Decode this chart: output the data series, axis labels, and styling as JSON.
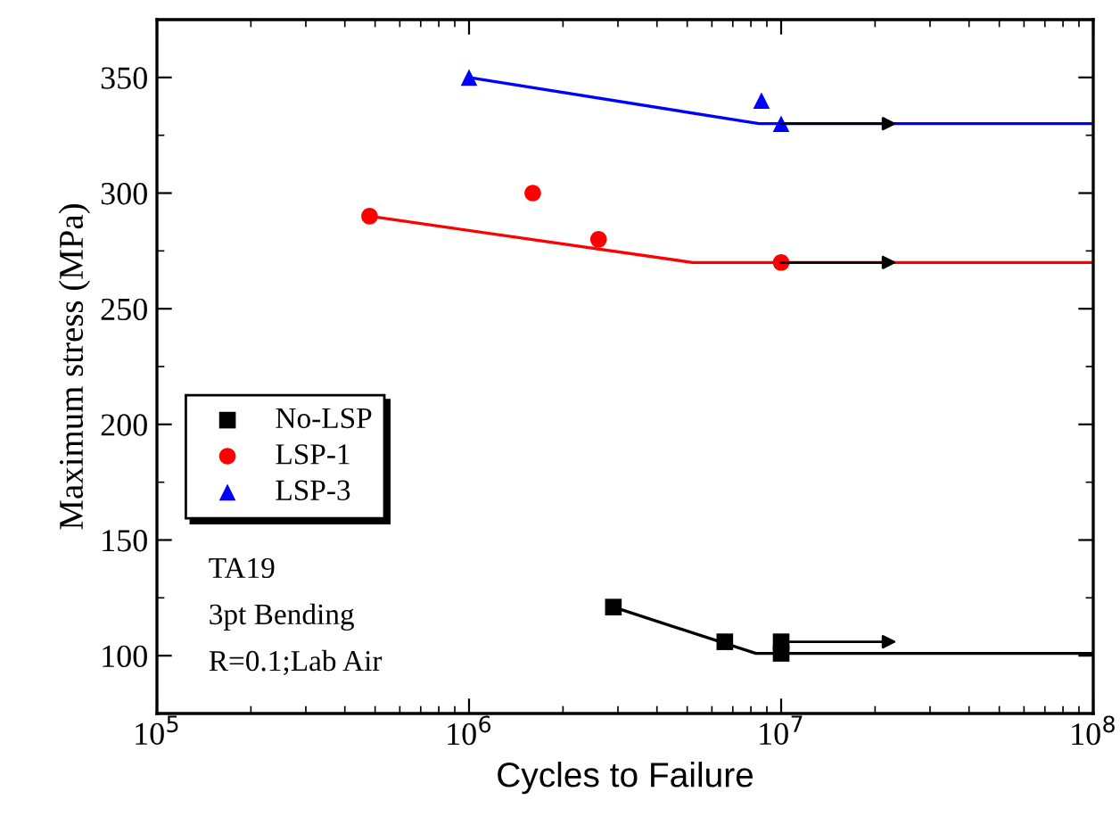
{
  "chart_data": {
    "type": "scatter",
    "xlabel": "Cycles to Failure",
    "ylabel": "Maximum stress (MPa)",
    "log": "x",
    "xlim": [
      100000,
      100000000
    ],
    "xticks": [
      {
        "value": 100000,
        "label": "10$^{5}$"
      },
      {
        "value": 1000000,
        "label": "10$^{6}$"
      },
      {
        "value": 10000000,
        "label": "10$^{7}$"
      },
      {
        "value": 100000000,
        "label": "10$^{8}$"
      }
    ],
    "ylim": [
      75,
      375
    ],
    "yticks": [
      100,
      150,
      200,
      250,
      300,
      350
    ],
    "grid": false,
    "legend": "left",
    "annotations": [
      "TA19",
      "3pt Bending",
      "R=0.1;Lab Air"
    ],
    "series": [
      {
        "name": "No-LSP",
        "marker": "square",
        "color": "#000000",
        "x": [
          2900000,
          6600000,
          10000000,
          10000000
        ],
        "values": [
          121,
          106,
          106,
          101
        ]
      },
      {
        "name": "LSP-1",
        "marker": "circle",
        "color": "#ff0000",
        "x": [
          480000,
          1600000,
          2600000,
          10000000
        ],
        "values": [
          290,
          300,
          280,
          270
        ]
      },
      {
        "name": "LSP-3",
        "marker": "triangle",
        "color": "#0000ff",
        "x": [
          1000000,
          8650000,
          10000000
        ],
        "values": [
          350,
          340,
          330
        ]
      },
      {
        "type": "line",
        "marker": "none",
        "color": "#000000",
        "x": [
          2900000,
          8300000,
          100000000
        ],
        "values": [
          121,
          101,
          101
        ]
      },
      {
        "type": "line",
        "marker": "none",
        "color": "#ff0000",
        "x": [
          480000,
          5200000,
          100000000
        ],
        "values": [
          290,
          270,
          270
        ]
      },
      {
        "type": "line",
        "marker": "none",
        "color": "#0000ff",
        "x": [
          1000000,
          8500000,
          100000000
        ],
        "values": [
          350,
          330,
          330
        ]
      }
    ]
  }
}
